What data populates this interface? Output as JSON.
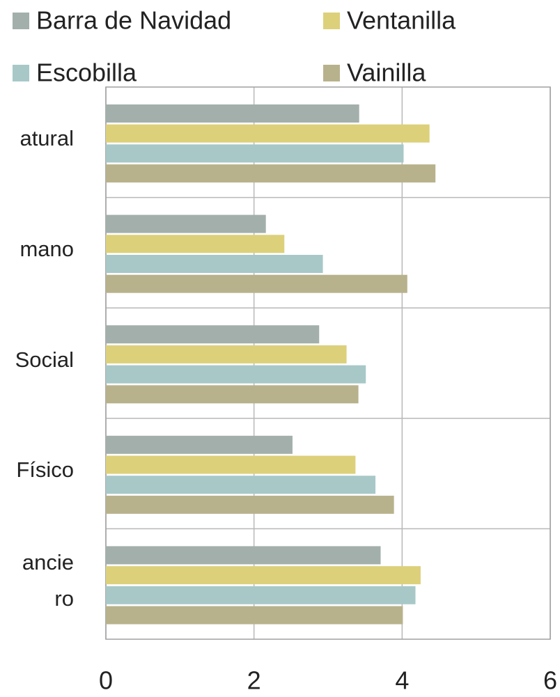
{
  "chart_data": {
    "type": "barh",
    "categories": [
      "atural",
      "mano",
      "Social",
      "Físico",
      "ancie\nro"
    ],
    "series": [
      {
        "name": "Barra de Navidad",
        "color": "#a3afab",
        "values": [
          3.42,
          2.16,
          2.88,
          2.52,
          3.71
        ]
      },
      {
        "name": "Ventanilla",
        "color": "#dcd07b",
        "values": [
          4.37,
          2.41,
          3.25,
          3.37,
          4.25
        ]
      },
      {
        "name": "Escobilla",
        "color": "#a8c8c8",
        "values": [
          4.02,
          2.93,
          3.51,
          3.64,
          4.18
        ]
      },
      {
        "name": "Vainilla",
        "color": "#b8b28c",
        "values": [
          4.45,
          4.07,
          3.41,
          3.89,
          4.01
        ]
      }
    ],
    "xlim": [
      0,
      6
    ],
    "xticks": [
      0,
      2,
      4,
      6
    ],
    "grid": true
  }
}
